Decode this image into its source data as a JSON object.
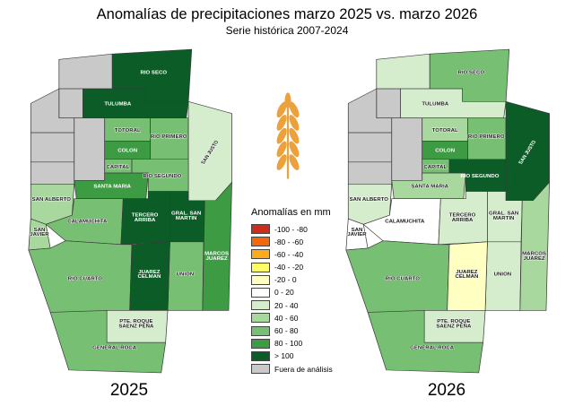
{
  "title": "Anomalías de precipitaciones marzo 2025 vs. marzo 2026",
  "subtitle": "Serie histórica 2007-2024",
  "wheat": {
    "name": "wheat-spike",
    "color": "#eca13d"
  },
  "legend": {
    "title": "Anomalías en mm",
    "items": [
      {
        "key": "r100",
        "label": "-100 - -80",
        "color": "#cc2d1d"
      },
      {
        "key": "r80",
        "label": "-80 - -60",
        "color": "#f2690d"
      },
      {
        "key": "r60",
        "label": "-60 - -40",
        "color": "#fbab1d"
      },
      {
        "key": "r40",
        "label": "-40 - -20",
        "color": "#ffff66"
      },
      {
        "key": "y20",
        "label": "-20 - 0",
        "color": "#ffffc2"
      },
      {
        "key": "w0",
        "label": "0 - 20",
        "color": "#ffffff"
      },
      {
        "key": "g20",
        "label": "20 - 40",
        "color": "#d5edcd"
      },
      {
        "key": "g40",
        "label": "40 - 60",
        "color": "#a8d89e"
      },
      {
        "key": "g60",
        "label": "60 - 80",
        "color": "#77bf72"
      },
      {
        "key": "g80",
        "label": "80 - 100",
        "color": "#3c9b43"
      },
      {
        "key": "g100",
        "label": "> 100",
        "color": "#0b5c26"
      },
      {
        "key": "fuera",
        "label": "Fuera de análisis",
        "color": "#c9c9c9"
      }
    ]
  },
  "departments": [
    {
      "id": "sobremonte",
      "label": ""
    },
    {
      "id": "rio_seco",
      "label": "RIO SECO"
    },
    {
      "id": "ischilin",
      "label": ""
    },
    {
      "id": "tulumba",
      "label": "TULUMBA"
    },
    {
      "id": "cruz_del_eje",
      "label": ""
    },
    {
      "id": "minas",
      "label": ""
    },
    {
      "id": "pocho",
      "label": ""
    },
    {
      "id": "punilla",
      "label": ""
    },
    {
      "id": "san_alberto",
      "label": "SAN ALBERTO"
    },
    {
      "id": "san_javier",
      "label": "SAN\nJAVIER"
    },
    {
      "id": "totoral",
      "label": "TOTORAL"
    },
    {
      "id": "rio_primero",
      "label": "RIO PRIMERO"
    },
    {
      "id": "san_justo",
      "label": "SAN JUSTO"
    },
    {
      "id": "colon",
      "label": "COLON"
    },
    {
      "id": "capital",
      "label": "CAPITAL"
    },
    {
      "id": "rio_segundo",
      "label": "RIO SEGUNDO"
    },
    {
      "id": "santa_maria",
      "label": "SANTA MARIA"
    },
    {
      "id": "calamuchita",
      "label": "CALAMUCHITA"
    },
    {
      "id": "tercero_arriba",
      "label": "TERCERO\nARRIBA"
    },
    {
      "id": "general_san_martin",
      "label": "GRAL. SAN\nMARTIN"
    },
    {
      "id": "union",
      "label": "UNION"
    },
    {
      "id": "marcos_juarez",
      "label": "MARCOS\nJUAREZ"
    },
    {
      "id": "rio_cuarto",
      "label": "RIO CUARTO"
    },
    {
      "id": "juarez_celman",
      "label": "JUAREZ\nCELMAN"
    },
    {
      "id": "saenz_pena",
      "label": "PTE. ROQUE\nSAENZ PEÑA"
    },
    {
      "id": "general_roca",
      "label": "GENERAL ROCA"
    }
  ],
  "maps": [
    {
      "year": "2025",
      "bins": {
        "sobremonte": "fuera",
        "rio_seco": "g100",
        "ischilin": "fuera",
        "tulumba": "g100",
        "cruz_del_eje": "fuera",
        "minas": "fuera",
        "pocho": "fuera",
        "punilla": "fuera",
        "san_alberto": "g40",
        "san_javier": "g40",
        "totoral": "g60",
        "rio_primero": "g60",
        "san_justo": "g20",
        "colon": "g80",
        "capital": "g60",
        "rio_segundo": "g60",
        "santa_maria": "g80",
        "calamuchita": "g60",
        "tercero_arriba": "g100",
        "general_san_martin": "g100",
        "union": "g60",
        "marcos_juarez": "g80",
        "rio_cuarto": "g60",
        "juarez_celman": "g100",
        "saenz_pena": "g20",
        "general_roca": "g60"
      }
    },
    {
      "year": "2026",
      "bins": {
        "sobremonte": "g20",
        "rio_seco": "g60",
        "ischilin": "fuera",
        "tulumba": "g20",
        "cruz_del_eje": "fuera",
        "minas": "fuera",
        "pocho": "fuera",
        "punilla": "fuera",
        "san_alberto": "g20",
        "san_javier": "w0",
        "totoral": "g40",
        "rio_primero": "g60",
        "san_justo": "g100",
        "colon": "g80",
        "capital": "g60",
        "rio_segundo": "g100",
        "santa_maria": "g40",
        "calamuchita": "w0",
        "tercero_arriba": "g20",
        "general_san_martin": "g20",
        "union": "g20",
        "marcos_juarez": "g40",
        "rio_cuarto": "g60",
        "juarez_celman": "y20",
        "saenz_pena": "g20",
        "general_roca": "g60"
      }
    }
  ]
}
